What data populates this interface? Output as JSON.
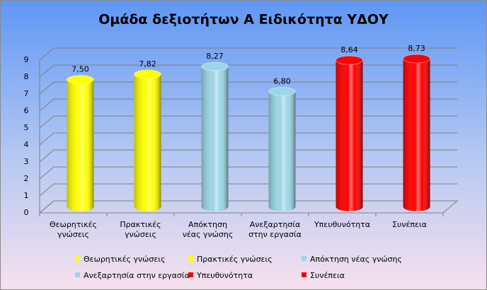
{
  "chart_data": {
    "type": "bar3d",
    "title": "Ομάδα δεξιοτήτων Α Ειδικότητα ΥΔΟΥ",
    "categories": [
      "Θεωρητικές γνώσεις",
      "Πρακτικές γνώσεις",
      "Απόκτηση νέας γνώσης",
      "Ανεξαρτησία στην εργασία",
      "Υπευθυνότητα",
      "Συνέπεια"
    ],
    "values": [
      7.5,
      7.82,
      8.27,
      6.8,
      8.64,
      8.73
    ],
    "value_labels": [
      "7,50",
      "7,82",
      "8,27",
      "6,80",
      "8,64",
      "8,73"
    ],
    "colors": [
      "#ffff00",
      "#ffff00",
      "#9dd6e6",
      "#9dd6e6",
      "#ff0000",
      "#ff0000"
    ],
    "ylim": [
      0,
      9
    ],
    "yticks": [
      0,
      1,
      2,
      3,
      4,
      5,
      6,
      7,
      8,
      9
    ],
    "grid": true
  }
}
